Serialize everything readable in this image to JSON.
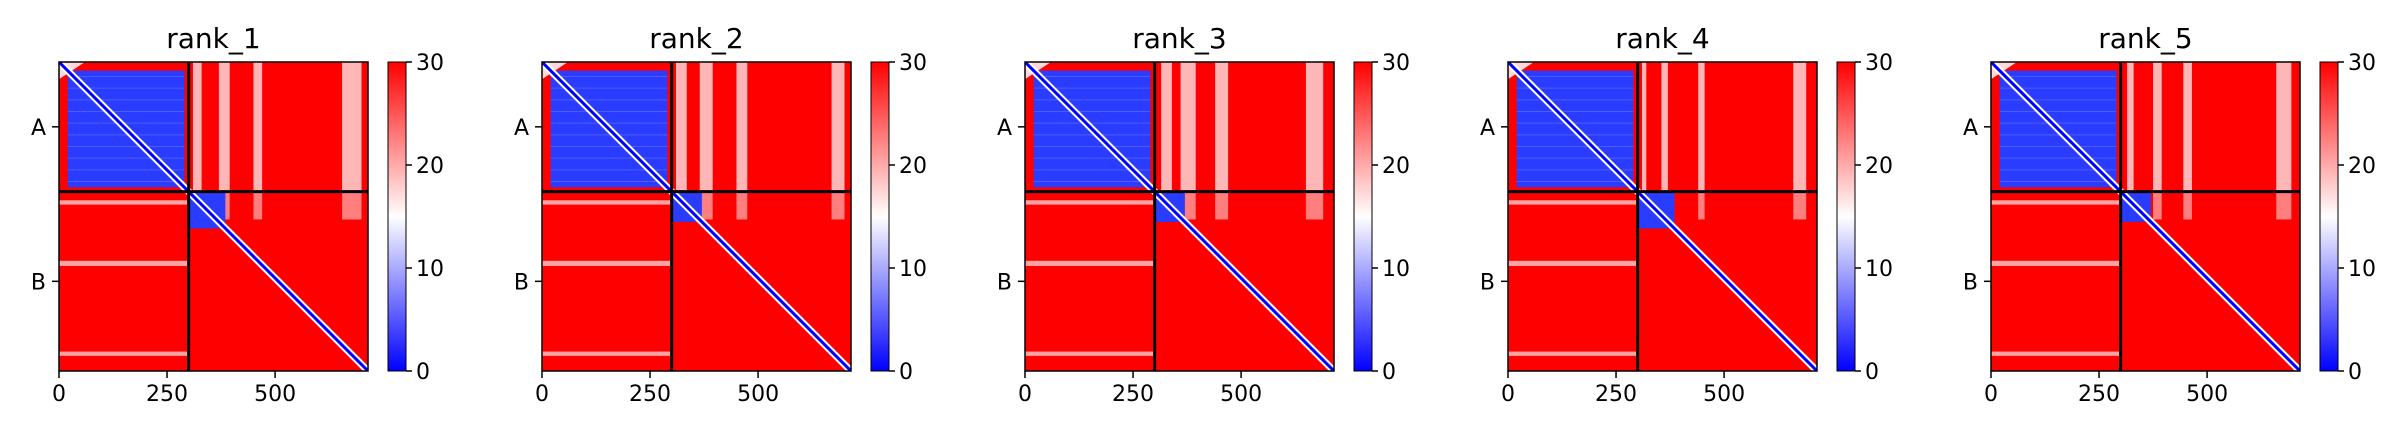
{
  "chart_data": [
    {
      "type": "heatmap",
      "title": "rank_1",
      "colormap": {
        "colors": [
          "#0000ff",
          "#ffffff",
          "#ff0000"
        ],
        "vmin": 0,
        "vmax": 30
      },
      "colorbar_ticks": [
        0,
        10,
        20,
        30
      ],
      "xticks": [
        0,
        250,
        500
      ],
      "xlim": [
        0,
        715
      ],
      "chains": [
        {
          "name": "A",
          "start": 0,
          "end": 300
        },
        {
          "name": "B",
          "start": 300,
          "end": 715
        }
      ],
      "blue_blocks": [
        [
          20,
          290
        ],
        [
          300,
          385
        ]
      ],
      "white_bands": [
        [
          310,
          330
        ],
        [
          370,
          395
        ],
        [
          450,
          470
        ],
        [
          655,
          700
        ]
      ]
    },
    {
      "type": "heatmap",
      "title": "rank_2",
      "colormap": {
        "colors": [
          "#0000ff",
          "#ffffff",
          "#ff0000"
        ],
        "vmin": 0,
        "vmax": 30
      },
      "colorbar_ticks": [
        0,
        10,
        20,
        30
      ],
      "xticks": [
        0,
        250,
        500
      ],
      "xlim": [
        0,
        715
      ],
      "chains": [
        {
          "name": "A",
          "start": 0,
          "end": 300
        },
        {
          "name": "B",
          "start": 300,
          "end": 715
        }
      ],
      "blue_blocks": [
        [
          20,
          290
        ],
        [
          300,
          370
        ]
      ],
      "white_bands": [
        [
          310,
          335
        ],
        [
          365,
          395
        ],
        [
          450,
          475
        ],
        [
          670,
          700
        ]
      ]
    },
    {
      "type": "heatmap",
      "title": "rank_3",
      "colormap": {
        "colors": [
          "#0000ff",
          "#ffffff",
          "#ff0000"
        ],
        "vmin": 0,
        "vmax": 30
      },
      "colorbar_ticks": [
        0,
        10,
        20,
        30
      ],
      "xticks": [
        0,
        250,
        500
      ],
      "xlim": [
        0,
        715
      ],
      "chains": [
        {
          "name": "A",
          "start": 0,
          "end": 300
        },
        {
          "name": "B",
          "start": 300,
          "end": 715
        }
      ],
      "blue_blocks": [
        [
          20,
          290
        ],
        [
          300,
          370
        ]
      ],
      "white_bands": [
        [
          315,
          340
        ],
        [
          360,
          395
        ],
        [
          440,
          470
        ],
        [
          650,
          690
        ]
      ]
    },
    {
      "type": "heatmap",
      "title": "rank_4",
      "colormap": {
        "colors": [
          "#0000ff",
          "#ffffff",
          "#ff0000"
        ],
        "vmin": 0,
        "vmax": 30
      },
      "colorbar_ticks": [
        0,
        10,
        20,
        30
      ],
      "xticks": [
        0,
        250,
        500
      ],
      "xlim": [
        0,
        715
      ],
      "chains": [
        {
          "name": "A",
          "start": 0,
          "end": 300
        },
        {
          "name": "B",
          "start": 300,
          "end": 715
        }
      ],
      "blue_blocks": [
        [
          20,
          290
        ],
        [
          300,
          385
        ]
      ],
      "white_bands": [
        [
          310,
          320
        ],
        [
          355,
          370
        ],
        [
          440,
          455
        ],
        [
          660,
          690
        ]
      ]
    },
    {
      "type": "heatmap",
      "title": "rank_5",
      "colormap": {
        "colors": [
          "#0000ff",
          "#ffffff",
          "#ff0000"
        ],
        "vmin": 0,
        "vmax": 30
      },
      "colorbar_ticks": [
        0,
        10,
        20,
        30
      ],
      "xticks": [
        0,
        250,
        500
      ],
      "xlim": [
        0,
        715
      ],
      "chains": [
        {
          "name": "A",
          "start": 0,
          "end": 300
        },
        {
          "name": "B",
          "start": 300,
          "end": 715
        }
      ],
      "blue_blocks": [
        [
          20,
          290
        ],
        [
          300,
          370
        ]
      ],
      "white_bands": [
        [
          315,
          330
        ],
        [
          375,
          395
        ],
        [
          445,
          465
        ],
        [
          660,
          695
        ]
      ]
    }
  ]
}
